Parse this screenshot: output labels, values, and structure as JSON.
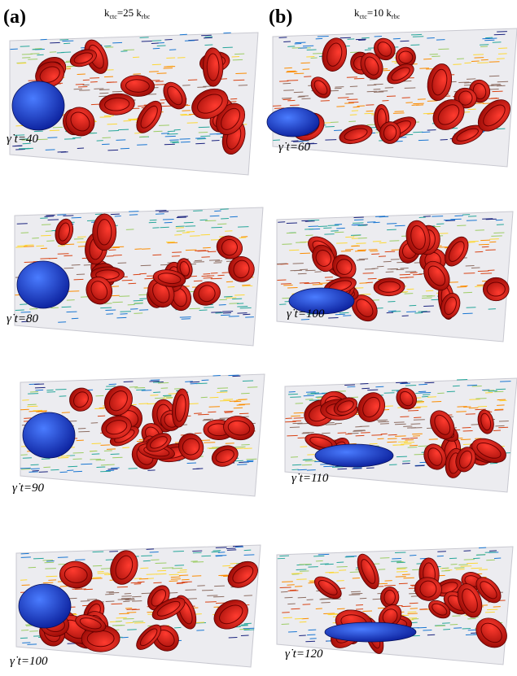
{
  "columns": [
    {
      "label": "(a)",
      "title": {
        "k": "k",
        "sub": "ctc",
        "mid": "=25 k",
        "sub2": "rbc"
      },
      "panels": [
        {
          "time": "γ̇ t=40"
        },
        {
          "time": "γ̇ t=80"
        },
        {
          "time": "γ̇ t=90"
        },
        {
          "time": "γ̇ t=100"
        }
      ]
    },
    {
      "label": "(b)",
      "title": {
        "k": "k",
        "sub": "ctc",
        "mid": "=10 k",
        "sub2": "rbc"
      },
      "panels": [
        {
          "time": "γ̇ t=60"
        },
        {
          "time": "γ̇ t=100"
        },
        {
          "time": "γ̇ t=110"
        },
        {
          "time": "γ̇ t=120"
        }
      ]
    }
  ]
}
